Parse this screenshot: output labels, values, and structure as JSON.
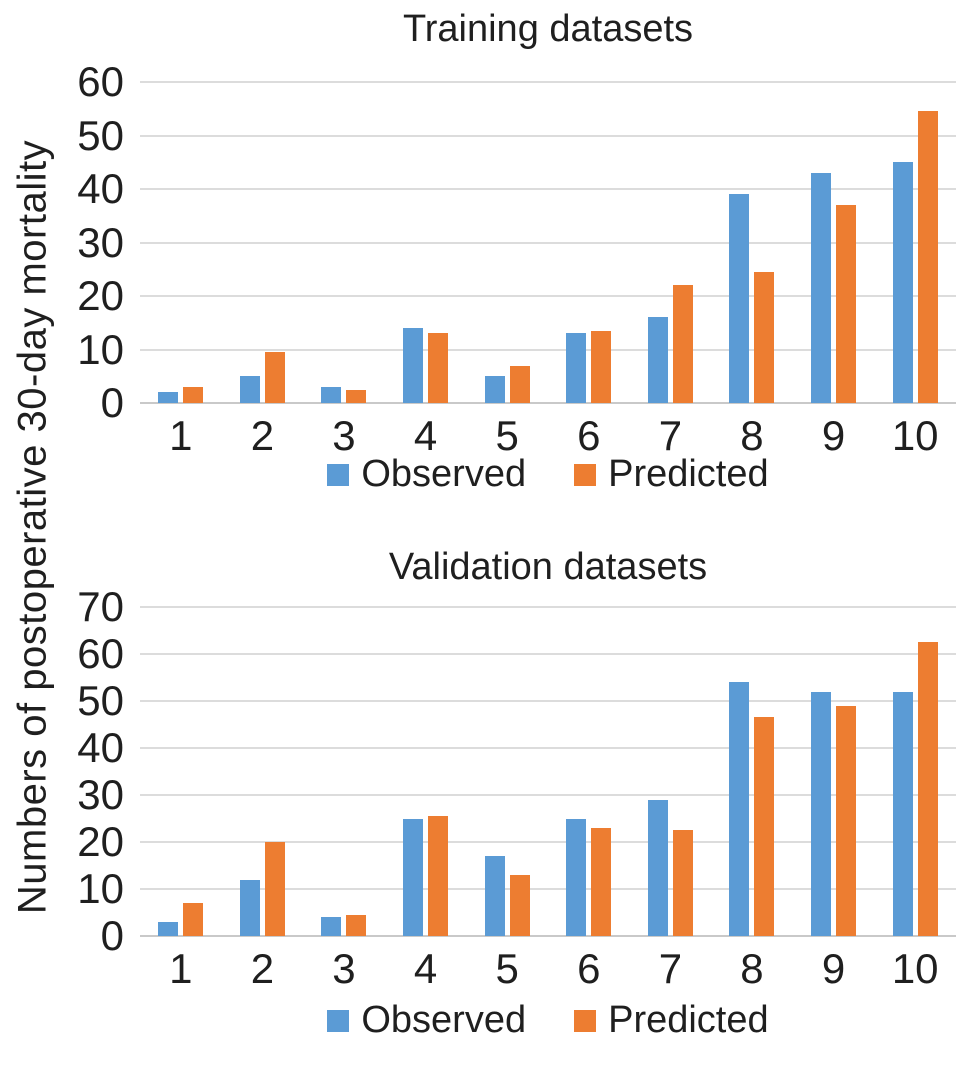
{
  "y_axis_label": "Numbers of postoperative 30-day mortality",
  "palette": {
    "observed_blue": "#5B9BD5",
    "predicted_orange": "#ED7D31",
    "gridline_gray": "#DCDCDC"
  },
  "chart_data": [
    {
      "type": "bar",
      "title": "Training datasets",
      "categories": [
        "1",
        "2",
        "3",
        "4",
        "5",
        "6",
        "7",
        "8",
        "9",
        "10"
      ],
      "series": [
        {
          "name": "Observed",
          "color": "#5B9BD5",
          "values": [
            2,
            5,
            3,
            14,
            5,
            13,
            16,
            39,
            43,
            45
          ]
        },
        {
          "name": "Predicted",
          "color": "#ED7D31",
          "values": [
            3,
            9.5,
            2.5,
            13,
            7,
            13.5,
            22,
            24.5,
            37,
            54.5
          ]
        }
      ],
      "xlabel": "",
      "ylabel": "Numbers of postoperative 30-day mortality",
      "ylim": [
        0,
        60
      ],
      "ytick_step": 10,
      "grid": true,
      "legend_position": "bottom"
    },
    {
      "type": "bar",
      "title": "Validation datasets",
      "categories": [
        "1",
        "2",
        "3",
        "4",
        "5",
        "6",
        "7",
        "8",
        "9",
        "10"
      ],
      "series": [
        {
          "name": "Observed",
          "color": "#5B9BD5",
          "values": [
            3,
            12,
            4,
            25,
            17,
            25,
            29,
            54,
            52,
            52
          ]
        },
        {
          "name": "Predicted",
          "color": "#ED7D31",
          "values": [
            7,
            20,
            4.5,
            25.5,
            13,
            23,
            22.5,
            46.5,
            49,
            62.5
          ]
        }
      ],
      "xlabel": "",
      "ylabel": "Numbers of postoperative 30-day mortality",
      "ylim": [
        0,
        70
      ],
      "ytick_step": 10,
      "grid": true,
      "legend_position": "bottom"
    }
  ]
}
